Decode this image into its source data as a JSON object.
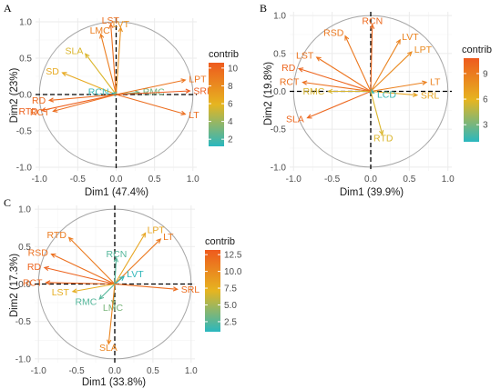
{
  "colors": {
    "panel_bg": "#ffffff",
    "grid_major": "#ebebeb",
    "grid_minor": "#f4f4f4",
    "circle": "#a6a6a6",
    "gradient_low": "#2ab7bf",
    "gradient_mid": "#e6b520",
    "gradient_high": "#ee5a1e"
  },
  "legend_title": "contrib",
  "chart_data": [
    {
      "panel": "A",
      "type": "scatter",
      "xlabel": "Dim1 (47.4%)",
      "ylabel": "Dim2 (23%)",
      "xlim": [
        -1.05,
        1.05
      ],
      "ylim": [
        -1.05,
        1.05
      ],
      "xticks": [
        -1.0,
        -0.5,
        0.0,
        0.5,
        1.0
      ],
      "yticks": [
        -1.0,
        -0.5,
        0.0,
        0.5,
        1.0
      ],
      "tick_labels_x": [
        "-1.0",
        "-0.5",
        "0.0",
        "0.5",
        "1.0"
      ],
      "tick_labels_y": [
        "-1.0",
        "-0.5",
        "0.0",
        "0.5",
        "1.0"
      ],
      "contrib_range": [
        1.2,
        10.6
      ],
      "legend_ticks": [
        2,
        4,
        6,
        8,
        10
      ],
      "legend_tick_labels": [
        "2",
        "4",
        "6",
        "8",
        "10"
      ],
      "variables": [
        {
          "label": "LST",
          "x": -0.07,
          "y": 0.97,
          "contrib": 9.5
        },
        {
          "label": "LMC",
          "x": -0.2,
          "y": 0.83,
          "contrib": 8.8
        },
        {
          "label": "LVT",
          "x": 0.06,
          "y": 0.92,
          "contrib": 7.8
        },
        {
          "label": "SLA",
          "x": -0.4,
          "y": 0.56,
          "contrib": 5.6
        },
        {
          "label": "SD",
          "x": -0.7,
          "y": 0.3,
          "contrib": 6.5
        },
        {
          "label": "RCN",
          "x": -0.05,
          "y": 0.02,
          "contrib": 1.5
        },
        {
          "label": "RMC",
          "x": 0.3,
          "y": 0.03,
          "contrib": 3.0
        },
        {
          "label": "LPT",
          "x": 0.9,
          "y": 0.2,
          "contrib": 9.2
        },
        {
          "label": "SRL",
          "x": 0.96,
          "y": 0.05,
          "contrib": 10.5
        },
        {
          "label": "LT",
          "x": 0.9,
          "y": -0.27,
          "contrib": 9.6
        },
        {
          "label": "RD",
          "x": -0.87,
          "y": -0.08,
          "contrib": 9.8
        },
        {
          "label": "RTD",
          "x": -0.97,
          "y": -0.22,
          "contrib": 10.3
        },
        {
          "label": "RCT",
          "x": -0.82,
          "y": -0.23,
          "contrib": 9.6
        }
      ]
    },
    {
      "panel": "B",
      "type": "scatter",
      "xlabel": "Dim1 (39.9%)",
      "ylabel": "Dim2 (19.8%)",
      "xlim": [
        -1.05,
        1.05
      ],
      "ylim": [
        -1.05,
        1.05
      ],
      "xticks": [
        -1.0,
        -0.5,
        0.0,
        0.5,
        1.0
      ],
      "yticks": [
        -1.0,
        -0.5,
        0.0,
        0.5,
        1.0
      ],
      "tick_labels_x": [
        "-1.0",
        "-0.5",
        "0.0",
        "0.5",
        "1.0"
      ],
      "tick_labels_y": [
        "-1.0",
        "-0.5",
        "0.0",
        "0.5",
        "1.0"
      ],
      "contrib_range": [
        1.0,
        10.8
      ],
      "legend_ticks": [
        3,
        6,
        9
      ],
      "legend_tick_labels": [
        "3",
        "6",
        "9"
      ],
      "variables": [
        {
          "label": "RCN",
          "x": 0.02,
          "y": 0.88,
          "contrib": 10.0
        },
        {
          "label": "RSD",
          "x": -0.33,
          "y": 0.73,
          "contrib": 9.2
        },
        {
          "label": "LVT",
          "x": 0.38,
          "y": 0.68,
          "contrib": 8.6
        },
        {
          "label": "LPT",
          "x": 0.53,
          "y": 0.52,
          "contrib": 8.2
        },
        {
          "label": "LST",
          "x": -0.7,
          "y": 0.45,
          "contrib": 9.4
        },
        {
          "label": "RD",
          "x": -0.93,
          "y": 0.3,
          "contrib": 10.2
        },
        {
          "label": "RCT",
          "x": -0.88,
          "y": 0.12,
          "contrib": 9.6
        },
        {
          "label": "RMC",
          "x": -0.55,
          "y": 0.0,
          "contrib": 5.5
        },
        {
          "label": "LT",
          "x": 0.72,
          "y": 0.12,
          "contrib": 8.7
        },
        {
          "label": "SRL",
          "x": 0.6,
          "y": -0.05,
          "contrib": 6.8
        },
        {
          "label": "LCD",
          "x": 0.04,
          "y": -0.02,
          "contrib": 1.4
        },
        {
          "label": "SLA",
          "x": -0.82,
          "y": -0.35,
          "contrib": 10.1
        },
        {
          "label": "RTD",
          "x": 0.15,
          "y": -0.57,
          "contrib": 5.6
        }
      ]
    },
    {
      "panel": "C",
      "type": "scatter",
      "xlabel": "Dim1 (33.8%)",
      "ylabel": "Dim2 (17.3%)",
      "xlim": [
        -1.05,
        1.05
      ],
      "ylim": [
        -1.05,
        1.05
      ],
      "xticks": [
        -1.0,
        -0.5,
        0.0,
        0.5,
        1.0
      ],
      "yticks": [
        -1.0,
        -0.5,
        0.0,
        0.5,
        1.0
      ],
      "tick_labels_x": [
        "-1.0",
        "-0.5",
        "0.0",
        "0.5",
        "1.0"
      ],
      "tick_labels_y": [
        "-1.0",
        "-0.5",
        "0.0",
        "0.5",
        "1.0"
      ],
      "contrib_range": [
        1.0,
        13.2
      ],
      "legend_ticks": [
        2.5,
        5.0,
        7.5,
        10.0,
        12.5
      ],
      "legend_tick_labels": [
        "2.5",
        "5.0",
        "7.5",
        "10.0",
        "12.5"
      ],
      "variables": [
        {
          "label": "RTD",
          "x": -0.6,
          "y": 0.62,
          "contrib": 11.0
        },
        {
          "label": "RSD",
          "x": -0.83,
          "y": 0.4,
          "contrib": 11.8
        },
        {
          "label": "RD",
          "x": -0.92,
          "y": 0.22,
          "contrib": 12.6
        },
        {
          "label": "RCT",
          "x": -0.9,
          "y": 0.02,
          "contrib": 12.4
        },
        {
          "label": "LPT",
          "x": 0.4,
          "y": 0.68,
          "contrib": 8.2
        },
        {
          "label": "LT",
          "x": 0.6,
          "y": 0.6,
          "contrib": 11.1
        },
        {
          "label": "RCN",
          "x": 0.02,
          "y": 0.35,
          "contrib": 2.4
        },
        {
          "label": "LVT",
          "x": 0.12,
          "y": 0.1,
          "contrib": 1.2
        },
        {
          "label": "SRL",
          "x": 0.82,
          "y": -0.07,
          "contrib": 12.0
        },
        {
          "label": "LST",
          "x": -0.55,
          "y": -0.1,
          "contrib": 7.6
        },
        {
          "label": "RMC",
          "x": -0.2,
          "y": -0.2,
          "contrib": 2.4
        },
        {
          "label": "LMC",
          "x": -0.02,
          "y": -0.27,
          "contrib": 3.6
        },
        {
          "label": "SLA",
          "x": -0.08,
          "y": -0.8,
          "contrib": 10.4
        }
      ]
    }
  ]
}
